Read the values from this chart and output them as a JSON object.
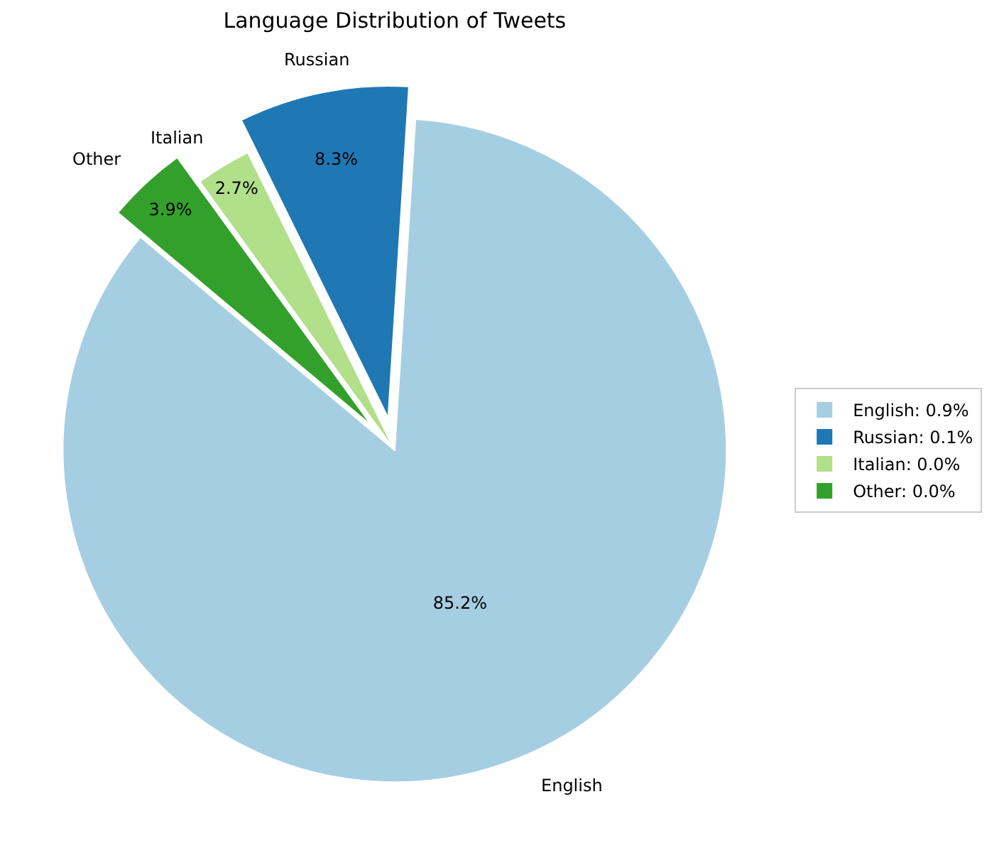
{
  "chart_data": {
    "type": "pie",
    "title": "Language Distribution of Tweets",
    "categories": [
      "English: 0.9%",
      "Russian: 0.1%",
      "Italian: 0.0%",
      "Other: 0.0%"
    ],
    "values": [
      85.2,
      8.3,
      2.7,
      3.9
    ],
    "value_labels": [
      "85.2%",
      "8.3%",
      "2.7%",
      "3.9%"
    ],
    "colors": [
      "#a6cee3",
      "#1f78b4",
      "#b2df8a",
      "#33a02c"
    ],
    "legend": "right",
    "annotations": [
      "English",
      "Russian",
      "Italian",
      "Other"
    ]
  }
}
